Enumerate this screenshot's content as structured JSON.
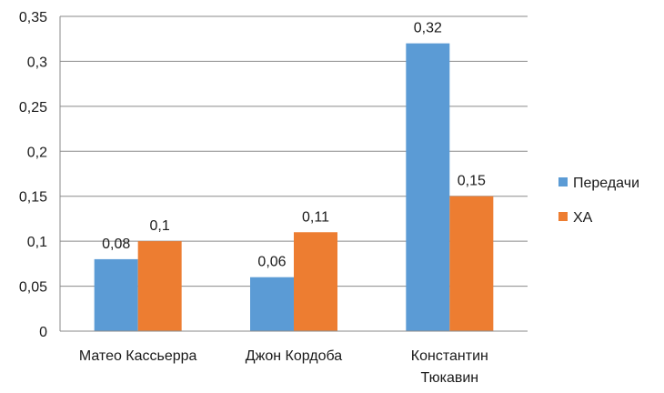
{
  "chart_data": {
    "type": "bar",
    "categories": [
      [
        "Матео Кассьерра"
      ],
      [
        "Джон Кордоба"
      ],
      [
        "Константин",
        "Тюкавин"
      ]
    ],
    "series": [
      {
        "name": "Передачи",
        "values": [
          0.08,
          0.06,
          0.32
        ],
        "labels": [
          "0,08",
          "0,06",
          "0,32"
        ],
        "color": "#5B9BD5"
      },
      {
        "name": "ХА",
        "values": [
          0.1,
          0.11,
          0.15
        ],
        "labels": [
          "0,1",
          "0,11",
          "0,15"
        ],
        "color": "#ED7D31"
      }
    ],
    "ylim": [
      0,
      0.35
    ],
    "yticks": [
      0,
      0.05,
      0.1,
      0.15,
      0.2,
      0.25,
      0.3,
      0.35
    ],
    "ytick_labels": [
      "0",
      "0,05",
      "0,1",
      "0,15",
      "0,2",
      "0,25",
      "0,3",
      "0,35"
    ],
    "grid": true,
    "legend_position": "right",
    "title": "",
    "xlabel": "",
    "ylabel": ""
  }
}
